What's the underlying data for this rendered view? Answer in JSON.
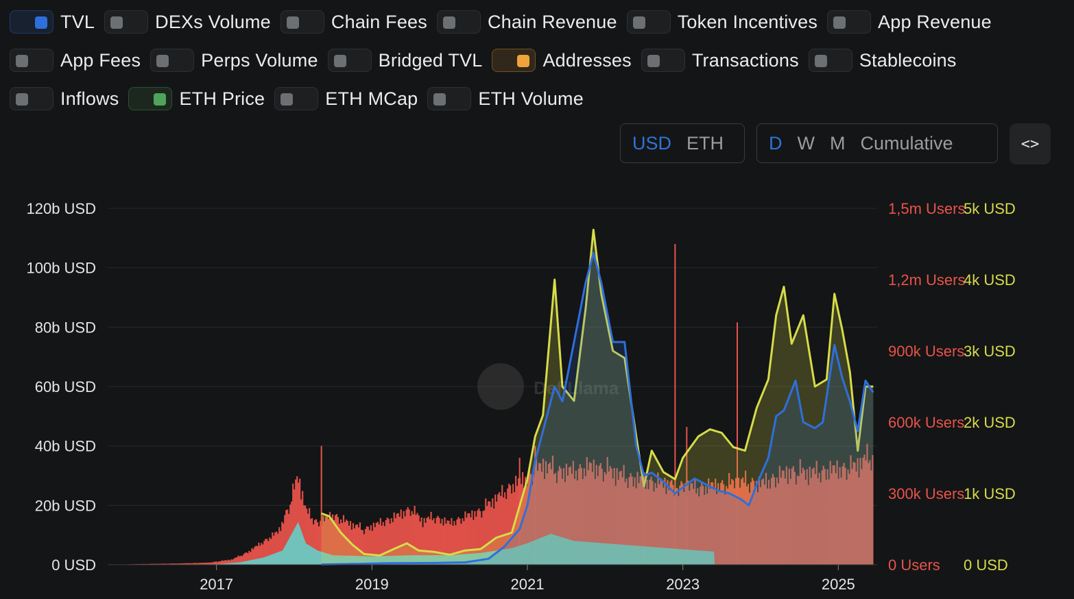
{
  "toggles": [
    [
      {
        "label": "TVL",
        "on": true,
        "color": "#2f6fdb"
      },
      {
        "label": "DEXs Volume",
        "on": false
      },
      {
        "label": "Chain Fees",
        "on": false
      },
      {
        "label": "Chain Revenue",
        "on": false
      },
      {
        "label": "Token Incentives",
        "on": false
      },
      {
        "label": "App Revenue",
        "on": false
      }
    ],
    [
      {
        "label": "App Fees",
        "on": false
      },
      {
        "label": "Perps Volume",
        "on": false
      },
      {
        "label": "Bridged TVL",
        "on": false
      },
      {
        "label": "Addresses",
        "on": true,
        "color": "#f0a33a"
      },
      {
        "label": "Transactions",
        "on": false
      },
      {
        "label": "Stablecoins",
        "on": false
      }
    ],
    [
      {
        "label": "Inflows",
        "on": false
      },
      {
        "label": "ETH Price",
        "on": true,
        "color": "#4fa35a"
      },
      {
        "label": "ETH MCap",
        "on": false
      },
      {
        "label": "ETH Volume",
        "on": false
      }
    ]
  ],
  "denomination": {
    "options": [
      "USD",
      "ETH"
    ],
    "selected": "USD"
  },
  "period": {
    "options": [
      "D",
      "W",
      "M",
      "Cumulative"
    ],
    "selected": "D"
  },
  "embed_icon": "code-icon",
  "embed_label": "<>",
  "watermark": "DefiLlama",
  "colors": {
    "tvl": "#2f6fdb",
    "eth_price": "#d7dc4a",
    "addresses": "#e8534b",
    "transactions": "#5ed6d0",
    "left_axis_text": "#e6e6e6",
    "users_axis_text": "#e8534b",
    "price_axis_text": "#d7dc4a",
    "background": "#141516"
  },
  "chart_data": {
    "type": "area",
    "x_tick_labels": [
      "2017",
      "2019",
      "2021",
      "2023",
      "2025"
    ],
    "x_range": [
      2015.6,
      2025.5
    ],
    "axes": {
      "left": {
        "ticks": [
          "0 USD",
          "20b USD",
          "40b USD",
          "60b USD",
          "80b USD",
          "100b USD",
          "120b USD"
        ],
        "range": [
          0,
          120
        ]
      },
      "users": {
        "ticks": [
          "0 Users",
          "300k Users",
          "600k Users",
          "900k Users",
          "1,2m Users",
          "1,5m Users"
        ],
        "range": [
          0,
          1500000
        ]
      },
      "price": {
        "ticks": [
          "0 USD",
          "1k USD",
          "2k USD",
          "3k USD",
          "4k USD",
          "5k USD"
        ],
        "range": [
          0,
          5000
        ]
      }
    },
    "series": [
      {
        "key": "addresses",
        "axis": "users",
        "style": "bars",
        "points": [
          [
            2015.6,
            0
          ],
          [
            2016.0,
            3000
          ],
          [
            2016.5,
            6000
          ],
          [
            2016.9,
            10000
          ],
          [
            2017.2,
            25000
          ],
          [
            2017.4,
            60000
          ],
          [
            2017.6,
            110000
          ],
          [
            2017.8,
            160000
          ],
          [
            2017.95,
            300000
          ],
          [
            2018.05,
            430000
          ],
          [
            2018.15,
            260000
          ],
          [
            2018.3,
            200000
          ],
          [
            2018.5,
            240000
          ],
          [
            2018.7,
            200000
          ],
          [
            2018.9,
            170000
          ],
          [
            2019.1,
            200000
          ],
          [
            2019.3,
            230000
          ],
          [
            2019.5,
            270000
          ],
          [
            2019.65,
            210000
          ],
          [
            2019.8,
            230000
          ],
          [
            2020.0,
            200000
          ],
          [
            2020.2,
            230000
          ],
          [
            2020.4,
            260000
          ],
          [
            2020.6,
            320000
          ],
          [
            2020.8,
            380000
          ],
          [
            2021.0,
            420000
          ],
          [
            2021.2,
            480000
          ],
          [
            2021.4,
            450000
          ],
          [
            2021.6,
            450000
          ],
          [
            2021.8,
            470000
          ],
          [
            2022.0,
            460000
          ],
          [
            2022.2,
            430000
          ],
          [
            2022.4,
            410000
          ],
          [
            2022.6,
            400000
          ],
          [
            2022.8,
            390000
          ],
          [
            2023.0,
            380000
          ],
          [
            2023.2,
            370000
          ],
          [
            2023.4,
            380000
          ],
          [
            2023.6,
            390000
          ],
          [
            2023.8,
            400000
          ],
          [
            2024.0,
            390000
          ],
          [
            2024.2,
            420000
          ],
          [
            2024.4,
            450000
          ],
          [
            2024.6,
            440000
          ],
          [
            2024.8,
            450000
          ],
          [
            2025.0,
            460000
          ],
          [
            2025.2,
            470000
          ],
          [
            2025.45,
            530000
          ]
        ],
        "spikes": [
          [
            2018.35,
            500000
          ],
          [
            2020.9,
            450000
          ],
          [
            2021.1,
            500000
          ],
          [
            2022.5,
            380000
          ],
          [
            2022.9,
            1350000
          ],
          [
            2023.05,
            580000
          ],
          [
            2023.7,
            1020000
          ]
        ]
      },
      {
        "key": "transactions",
        "axis": "users",
        "style": "area",
        "points": [
          [
            2015.6,
            0
          ],
          [
            2016.5,
            1000
          ],
          [
            2017.0,
            2000
          ],
          [
            2017.3,
            10000
          ],
          [
            2017.6,
            30000
          ],
          [
            2017.85,
            60000
          ],
          [
            2018.05,
            180000
          ],
          [
            2018.15,
            90000
          ],
          [
            2018.3,
            60000
          ],
          [
            2018.5,
            40000
          ],
          [
            2019.0,
            35000
          ],
          [
            2019.5,
            40000
          ],
          [
            2020.0,
            40000
          ],
          [
            2020.4,
            50000
          ],
          [
            2020.8,
            70000
          ],
          [
            2021.0,
            90000
          ],
          [
            2021.3,
            130000
          ],
          [
            2021.6,
            100000
          ],
          [
            2022.0,
            90000
          ],
          [
            2022.4,
            80000
          ],
          [
            2022.8,
            70000
          ],
          [
            2023.2,
            60000
          ],
          [
            2023.4,
            55000
          ],
          [
            2023.41,
            0
          ]
        ]
      },
      {
        "key": "eth_price",
        "axis": "price",
        "style": "line-area",
        "points": [
          [
            2018.35,
            720
          ],
          [
            2018.45,
            680
          ],
          [
            2018.6,
            450
          ],
          [
            2018.75,
            280
          ],
          [
            2018.9,
            150
          ],
          [
            2019.1,
            130
          ],
          [
            2019.3,
            230
          ],
          [
            2019.45,
            300
          ],
          [
            2019.6,
            200
          ],
          [
            2019.8,
            180
          ],
          [
            2020.0,
            140
          ],
          [
            2020.2,
            200
          ],
          [
            2020.4,
            220
          ],
          [
            2020.6,
            380
          ],
          [
            2020.8,
            450
          ],
          [
            2021.0,
            1200
          ],
          [
            2021.1,
            1800
          ],
          [
            2021.2,
            2100
          ],
          [
            2021.35,
            4000
          ],
          [
            2021.45,
            2500
          ],
          [
            2021.6,
            2300
          ],
          [
            2021.75,
            3600
          ],
          [
            2021.85,
            4700
          ],
          [
            2021.95,
            3800
          ],
          [
            2022.1,
            3000
          ],
          [
            2022.25,
            2900
          ],
          [
            2022.4,
            1800
          ],
          [
            2022.5,
            1100
          ],
          [
            2022.6,
            1600
          ],
          [
            2022.75,
            1300
          ],
          [
            2022.9,
            1200
          ],
          [
            2023.0,
            1500
          ],
          [
            2023.2,
            1800
          ],
          [
            2023.35,
            1900
          ],
          [
            2023.5,
            1850
          ],
          [
            2023.65,
            1650
          ],
          [
            2023.8,
            1600
          ],
          [
            2023.95,
            2200
          ],
          [
            2024.1,
            2600
          ],
          [
            2024.2,
            3500
          ],
          [
            2024.3,
            3900
          ],
          [
            2024.4,
            3100
          ],
          [
            2024.55,
            3500
          ],
          [
            2024.7,
            2500
          ],
          [
            2024.85,
            2600
          ],
          [
            2024.95,
            3800
          ],
          [
            2025.05,
            3300
          ],
          [
            2025.15,
            2700
          ],
          [
            2025.25,
            1600
          ],
          [
            2025.35,
            2500
          ],
          [
            2025.45,
            2500
          ]
        ]
      },
      {
        "key": "tvl",
        "axis": "left",
        "style": "line-area",
        "points": [
          [
            2018.35,
            0.1
          ],
          [
            2018.8,
            0.3
          ],
          [
            2019.2,
            0.5
          ],
          [
            2019.8,
            0.6
          ],
          [
            2020.2,
            0.8
          ],
          [
            2020.5,
            2
          ],
          [
            2020.7,
            6
          ],
          [
            2020.9,
            12
          ],
          [
            2021.0,
            20
          ],
          [
            2021.1,
            35
          ],
          [
            2021.2,
            45
          ],
          [
            2021.35,
            60
          ],
          [
            2021.45,
            55
          ],
          [
            2021.6,
            75
          ],
          [
            2021.75,
            95
          ],
          [
            2021.85,
            105
          ],
          [
            2021.95,
            95
          ],
          [
            2022.1,
            75
          ],
          [
            2022.25,
            75
          ],
          [
            2022.4,
            40
          ],
          [
            2022.5,
            30
          ],
          [
            2022.6,
            31
          ],
          [
            2022.75,
            28
          ],
          [
            2022.9,
            24
          ],
          [
            2023.0,
            26
          ],
          [
            2023.15,
            29
          ],
          [
            2023.3,
            27
          ],
          [
            2023.45,
            25
          ],
          [
            2023.6,
            24
          ],
          [
            2023.75,
            22
          ],
          [
            2023.85,
            20
          ],
          [
            2023.95,
            27
          ],
          [
            2024.1,
            36
          ],
          [
            2024.2,
            50
          ],
          [
            2024.3,
            52
          ],
          [
            2024.45,
            62
          ],
          [
            2024.55,
            48
          ],
          [
            2024.7,
            46
          ],
          [
            2024.8,
            48
          ],
          [
            2024.95,
            74
          ],
          [
            2025.05,
            63
          ],
          [
            2025.15,
            55
          ],
          [
            2025.25,
            45
          ],
          [
            2025.35,
            62
          ],
          [
            2025.45,
            58
          ]
        ]
      }
    ]
  }
}
